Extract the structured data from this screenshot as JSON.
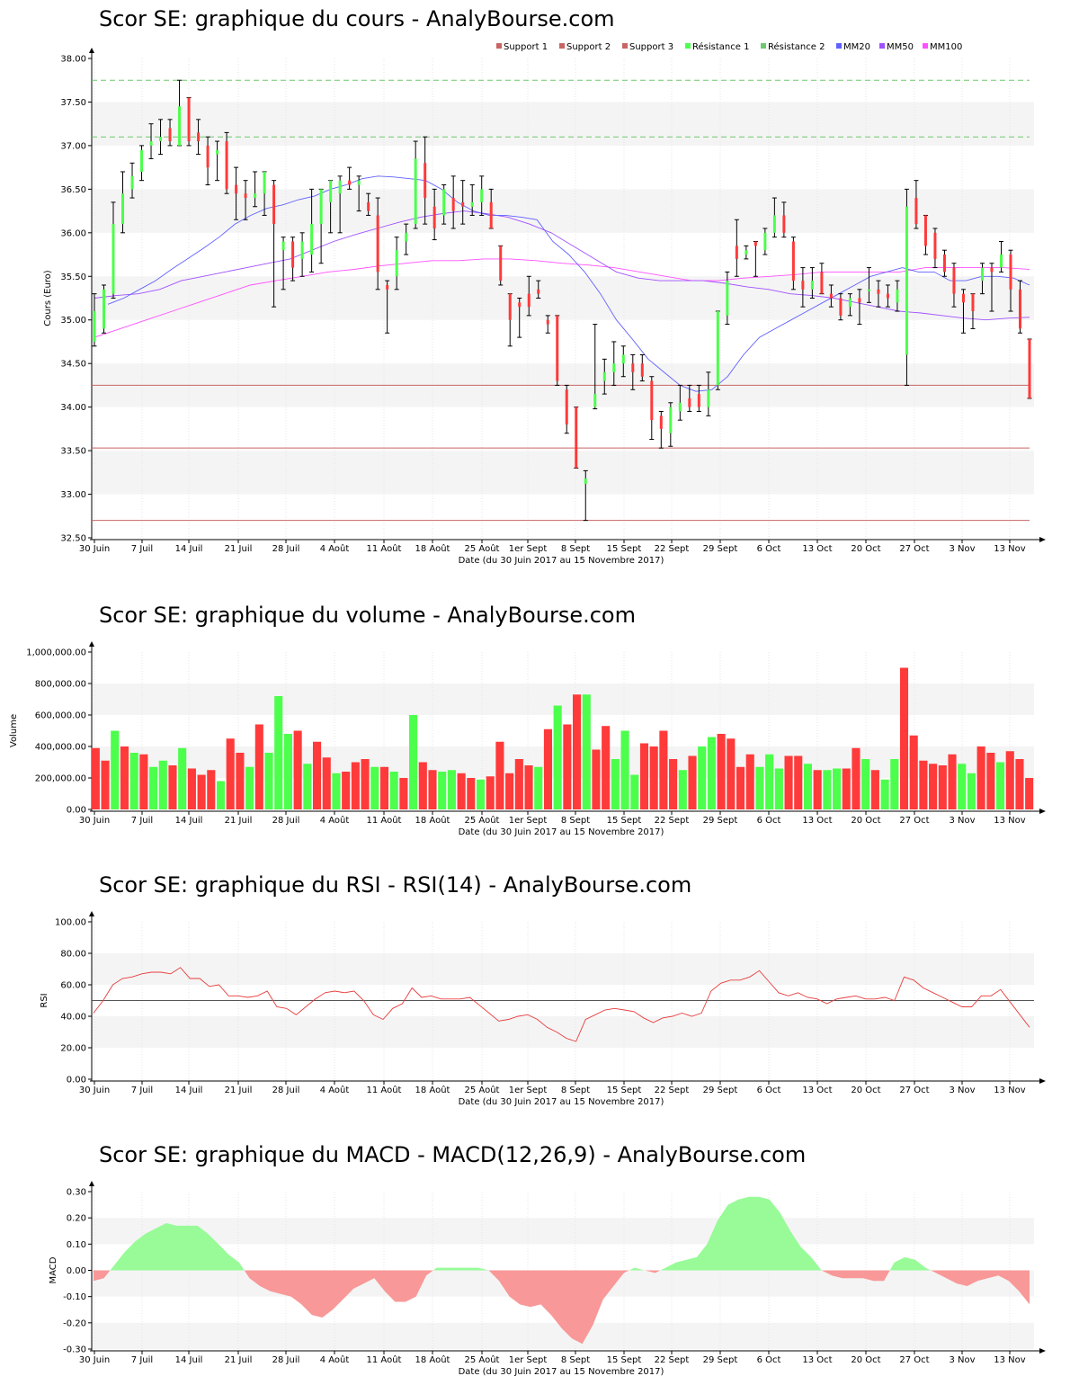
{
  "colors": {
    "up": "#4cff4c",
    "down": "#ff3a3a",
    "ma20": "#6060ff",
    "ma50": "#a050ff",
    "ma100": "#ff50ff",
    "support": "#c86464",
    "resistance": "#6ec86e",
    "macd_pos": "#98fb98",
    "macd_neg": "#f89898",
    "band": "#f4f4f4"
  },
  "icons": {
    "x_axis_arrow": "arrow-right-icon",
    "y_axis_arrow": "arrow-up-icon"
  },
  "x_axis": {
    "tick_labels": [
      "30 Juin",
      "7 Juil",
      "14 Juil",
      "21 Juil",
      "28 Juil",
      "4 Août",
      "11 Août",
      "18 Août",
      "25 Août",
      "1er Sept",
      "8 Sept",
      "15 Sept",
      "22 Sept",
      "29 Sept",
      "6 Oct",
      "13 Oct",
      "20 Oct",
      "27 Oct",
      "3 Nov",
      "13 Nov"
    ],
    "date_caption": "Date (du 30 Juin 2017 au 15 Novembre 2017)"
  },
  "chart_data": [
    {
      "id": "price",
      "type": "candlestick",
      "title": "Scor SE: graphique du cours - AnalyBourse.com",
      "ylabel": "Cours (Euro)",
      "ylim": [
        32.5,
        38.0
      ],
      "y_ticks": [
        "32.50",
        "33.00",
        "33.50",
        "34.00",
        "34.50",
        "35.00",
        "35.50",
        "36.00",
        "36.50",
        "37.00",
        "37.50",
        "38.00"
      ],
      "legend": [
        "Support 1",
        "Support 2",
        "Support 3",
        "Résistance 1",
        "Résistance 2",
        "MM20",
        "MM50",
        "MM100"
      ],
      "legend_placement": "top-right",
      "support": [
        34.25,
        33.53,
        32.7
      ],
      "resistance": [
        37.1,
        37.75
      ],
      "candles": [
        {
          "o": 34.75,
          "h": 35.3,
          "l": 34.7,
          "c": 35.1
        },
        {
          "o": 34.9,
          "h": 35.4,
          "l": 34.85,
          "c": 35.35
        },
        {
          "o": 35.3,
          "h": 36.35,
          "l": 35.25,
          "c": 36.1
        },
        {
          "o": 36.1,
          "h": 36.7,
          "l": 36.0,
          "c": 36.45
        },
        {
          "o": 36.5,
          "h": 36.8,
          "l": 36.4,
          "c": 36.65
        },
        {
          "o": 36.7,
          "h": 37.0,
          "l": 36.6,
          "c": 36.95
        },
        {
          "o": 37.0,
          "h": 37.25,
          "l": 36.85,
          "c": 37.05
        },
        {
          "o": 37.05,
          "h": 37.3,
          "l": 36.9,
          "c": 37.1
        },
        {
          "o": 37.2,
          "h": 37.3,
          "l": 37.0,
          "c": 37.05
        },
        {
          "o": 37.0,
          "h": 37.75,
          "l": 37.0,
          "c": 37.45
        },
        {
          "o": 37.55,
          "h": 37.55,
          "l": 37.0,
          "c": 37.05
        },
        {
          "o": 37.15,
          "h": 37.3,
          "l": 36.9,
          "c": 37.05
        },
        {
          "o": 37.0,
          "h": 37.1,
          "l": 36.55,
          "c": 36.75
        },
        {
          "o": 36.9,
          "h": 37.05,
          "l": 36.6,
          "c": 36.95
        },
        {
          "o": 37.05,
          "h": 37.15,
          "l": 36.45,
          "c": 36.5
        },
        {
          "o": 36.55,
          "h": 36.75,
          "l": 36.15,
          "c": 36.45
        },
        {
          "o": 36.45,
          "h": 36.6,
          "l": 36.15,
          "c": 36.4
        },
        {
          "o": 36.4,
          "h": 36.7,
          "l": 36.3,
          "c": 36.45
        },
        {
          "o": 36.45,
          "h": 36.7,
          "l": 36.2,
          "c": 36.7
        },
        {
          "o": 36.55,
          "h": 36.6,
          "l": 35.15,
          "c": 36.1
        },
        {
          "o": 35.8,
          "h": 35.95,
          "l": 35.35,
          "c": 35.9
        },
        {
          "o": 35.9,
          "h": 35.95,
          "l": 35.45,
          "c": 35.6
        },
        {
          "o": 35.7,
          "h": 36.0,
          "l": 35.5,
          "c": 35.9
        },
        {
          "o": 35.75,
          "h": 36.5,
          "l": 35.55,
          "c": 36.1
        },
        {
          "o": 36.1,
          "h": 36.5,
          "l": 35.65,
          "c": 36.5
        },
        {
          "o": 36.35,
          "h": 36.6,
          "l": 36.0,
          "c": 36.6
        },
        {
          "o": 36.45,
          "h": 36.65,
          "l": 36.0,
          "c": 36.6
        },
        {
          "o": 36.6,
          "h": 36.75,
          "l": 36.5,
          "c": 36.55
        },
        {
          "o": 36.55,
          "h": 36.65,
          "l": 36.25,
          "c": 36.6
        },
        {
          "o": 36.35,
          "h": 36.45,
          "l": 36.2,
          "c": 36.25
        },
        {
          "o": 36.2,
          "h": 36.4,
          "l": 35.35,
          "c": 35.55
        },
        {
          "o": 35.4,
          "h": 35.45,
          "l": 34.85,
          "c": 35.35
        },
        {
          "o": 35.5,
          "h": 35.95,
          "l": 35.35,
          "c": 35.8
        },
        {
          "o": 35.9,
          "h": 36.1,
          "l": 35.75,
          "c": 36.0
        },
        {
          "o": 36.1,
          "h": 37.05,
          "l": 36.05,
          "c": 36.85
        },
        {
          "o": 36.8,
          "h": 37.1,
          "l": 36.1,
          "c": 36.4
        },
        {
          "o": 36.3,
          "h": 36.5,
          "l": 35.92,
          "c": 36.05
        },
        {
          "o": 36.2,
          "h": 36.55,
          "l": 36.1,
          "c": 36.5
        },
        {
          "o": 36.4,
          "h": 36.65,
          "l": 36.05,
          "c": 36.25
        },
        {
          "o": 36.35,
          "h": 36.6,
          "l": 36.1,
          "c": 36.3
        },
        {
          "o": 36.3,
          "h": 36.55,
          "l": 36.2,
          "c": 36.35
        },
        {
          "o": 36.35,
          "h": 36.65,
          "l": 36.2,
          "c": 36.5
        },
        {
          "o": 36.35,
          "h": 36.5,
          "l": 36.05,
          "c": 36.05
        },
        {
          "o": 35.85,
          "h": 35.85,
          "l": 35.4,
          "c": 35.45
        },
        {
          "o": 35.3,
          "h": 35.3,
          "l": 34.7,
          "c": 35.0
        },
        {
          "o": 35.2,
          "h": 35.25,
          "l": 34.8,
          "c": 35.15
        },
        {
          "o": 35.3,
          "h": 35.5,
          "l": 35.05,
          "c": 35.15
        },
        {
          "o": 35.35,
          "h": 35.45,
          "l": 35.25,
          "c": 35.3
        },
        {
          "o": 35.0,
          "h": 35.05,
          "l": 34.85,
          "c": 34.95
        },
        {
          "o": 35.05,
          "h": 35.05,
          "l": 34.25,
          "c": 34.3
        },
        {
          "o": 34.2,
          "h": 34.25,
          "l": 33.7,
          "c": 33.8
        },
        {
          "o": 34.0,
          "h": 34.0,
          "l": 33.3,
          "c": 33.3
        },
        {
          "o": 33.12,
          "h": 33.27,
          "l": 32.7,
          "c": 33.18
        },
        {
          "o": 34.0,
          "h": 34.95,
          "l": 33.98,
          "c": 34.15
        },
        {
          "o": 34.3,
          "h": 34.55,
          "l": 34.15,
          "c": 34.4
        },
        {
          "o": 34.4,
          "h": 34.75,
          "l": 34.25,
          "c": 34.5
        },
        {
          "o": 34.5,
          "h": 34.7,
          "l": 34.35,
          "c": 34.6
        },
        {
          "o": 34.5,
          "h": 34.6,
          "l": 34.2,
          "c": 34.4
        },
        {
          "o": 34.5,
          "h": 34.6,
          "l": 34.3,
          "c": 34.35
        },
        {
          "o": 34.3,
          "h": 34.35,
          "l": 33.63,
          "c": 33.85
        },
        {
          "o": 33.9,
          "h": 33.95,
          "l": 33.53,
          "c": 33.75
        },
        {
          "o": 33.7,
          "h": 34.05,
          "l": 33.55,
          "c": 34.0
        },
        {
          "o": 33.95,
          "h": 34.25,
          "l": 33.85,
          "c": 34.05
        },
        {
          "o": 34.1,
          "h": 34.25,
          "l": 33.95,
          "c": 34.0
        },
        {
          "o": 34.15,
          "h": 34.25,
          "l": 33.95,
          "c": 34.0
        },
        {
          "o": 34.0,
          "h": 34.4,
          "l": 33.9,
          "c": 34.2
        },
        {
          "o": 34.25,
          "h": 35.1,
          "l": 34.2,
          "c": 35.1
        },
        {
          "o": 35.05,
          "h": 35.55,
          "l": 34.95,
          "c": 35.45
        },
        {
          "o": 35.85,
          "h": 36.15,
          "l": 35.5,
          "c": 35.7
        },
        {
          "o": 35.75,
          "h": 35.85,
          "l": 35.7,
          "c": 35.8
        },
        {
          "o": 35.9,
          "h": 35.9,
          "l": 35.5,
          "c": 35.85
        },
        {
          "o": 35.8,
          "h": 36.05,
          "l": 35.75,
          "c": 36.0
        },
        {
          "o": 36.0,
          "h": 36.4,
          "l": 35.95,
          "c": 36.2
        },
        {
          "o": 36.2,
          "h": 36.35,
          "l": 35.95,
          "c": 36.0
        },
        {
          "o": 35.9,
          "h": 35.95,
          "l": 35.35,
          "c": 35.45
        },
        {
          "o": 35.45,
          "h": 35.6,
          "l": 35.15,
          "c": 35.35
        },
        {
          "o": 35.35,
          "h": 35.6,
          "l": 35.25,
          "c": 35.45
        },
        {
          "o": 35.55,
          "h": 35.65,
          "l": 35.3,
          "c": 35.3
        },
        {
          "o": 35.3,
          "h": 35.4,
          "l": 35.15,
          "c": 35.25
        },
        {
          "o": 35.25,
          "h": 35.3,
          "l": 35.0,
          "c": 35.05
        },
        {
          "o": 35.15,
          "h": 35.3,
          "l": 35.05,
          "c": 35.25
        },
        {
          "o": 35.25,
          "h": 35.35,
          "l": 34.95,
          "c": 35.2
        },
        {
          "o": 35.35,
          "h": 35.6,
          "l": 35.2,
          "c": 35.35
        },
        {
          "o": 35.35,
          "h": 35.45,
          "l": 35.15,
          "c": 35.3
        },
        {
          "o": 35.3,
          "h": 35.4,
          "l": 35.15,
          "c": 35.25
        },
        {
          "o": 35.2,
          "h": 35.45,
          "l": 35.1,
          "c": 35.35
        },
        {
          "o": 34.6,
          "h": 36.5,
          "l": 34.25,
          "c": 36.3
        },
        {
          "o": 36.4,
          "h": 36.6,
          "l": 36.05,
          "c": 36.1
        },
        {
          "o": 36.2,
          "h": 36.2,
          "l": 35.75,
          "c": 35.85
        },
        {
          "o": 36.0,
          "h": 36.05,
          "l": 35.6,
          "c": 35.7
        },
        {
          "o": 35.75,
          "h": 35.8,
          "l": 35.5,
          "c": 35.55
        },
        {
          "o": 35.6,
          "h": 35.65,
          "l": 35.15,
          "c": 35.3
        },
        {
          "o": 35.3,
          "h": 35.35,
          "l": 34.85,
          "c": 35.2
        },
        {
          "o": 35.3,
          "h": 35.3,
          "l": 34.9,
          "c": 35.1
        },
        {
          "o": 35.45,
          "h": 35.65,
          "l": 35.3,
          "c": 35.6
        },
        {
          "o": 35.6,
          "h": 35.65,
          "l": 35.1,
          "c": 35.55
        },
        {
          "o": 35.6,
          "h": 35.9,
          "l": 35.55,
          "c": 35.75
        },
        {
          "o": 35.75,
          "h": 35.8,
          "l": 35.1,
          "c": 35.35
        },
        {
          "o": 35.35,
          "h": 35.45,
          "l": 34.85,
          "c": 34.9
        },
        {
          "o": 34.78,
          "h": 34.78,
          "l": 34.1,
          "c": 34.1
        }
      ],
      "mm20": [
        35.18,
        35.25,
        35.35,
        35.45,
        35.58,
        35.7,
        35.82,
        35.95,
        36.1,
        36.2,
        36.28,
        36.32,
        36.38,
        36.42,
        36.5,
        36.55,
        36.62,
        36.65,
        36.64,
        36.62,
        36.6,
        36.5,
        36.35,
        36.25,
        36.2,
        36.2,
        36.18,
        36.15,
        35.9,
        35.75,
        35.55,
        35.3,
        35.0,
        34.78,
        34.55,
        34.4,
        34.25,
        34.18,
        34.2,
        34.35,
        34.6,
        34.8,
        34.9,
        35.0,
        35.1,
        35.2,
        35.3,
        35.4,
        35.5,
        35.55,
        35.6,
        35.55,
        35.55,
        35.45,
        35.45,
        35.5,
        35.5,
        35.48,
        35.4
      ],
      "mm50": [
        35.25,
        35.28,
        35.3,
        35.35,
        35.45,
        35.5,
        35.55,
        35.6,
        35.65,
        35.7,
        35.8,
        35.9,
        35.98,
        36.05,
        36.12,
        36.18,
        36.22,
        36.25,
        36.22,
        36.18,
        36.1,
        36.0,
        35.85,
        35.7,
        35.55,
        35.48,
        35.45,
        35.45,
        35.45,
        35.42,
        35.38,
        35.35,
        35.3,
        35.28,
        35.25,
        35.2,
        35.15,
        35.1,
        35.08,
        35.05,
        35.02,
        35.0,
        35.02,
        35.03
      ],
      "mm100": [
        34.8,
        34.9,
        35.0,
        35.1,
        35.2,
        35.3,
        35.4,
        35.45,
        35.5,
        35.55,
        35.58,
        35.62,
        35.65,
        35.68,
        35.68,
        35.7,
        35.7,
        35.68,
        35.65,
        35.63,
        35.6,
        35.55,
        35.5,
        35.45,
        35.45,
        35.48,
        35.5,
        35.52,
        35.55,
        35.55,
        35.55,
        35.55,
        35.6,
        35.6,
        35.6,
        35.6,
        35.58
      ]
    },
    {
      "id": "volume",
      "type": "bar",
      "title": "Scor SE: graphique du volume - AnalyBourse.com",
      "ylabel": "Volume",
      "ylim": [
        0,
        1000000
      ],
      "y_ticks": [
        "0.00",
        "200,000.00",
        "400,000.00",
        "600,000.00",
        "800,000.00",
        "1,000,000.00"
      ],
      "values": [
        390000,
        310000,
        500000,
        400000,
        360000,
        350000,
        270000,
        310000,
        280000,
        390000,
        260000,
        220000,
        250000,
        180000,
        450000,
        360000,
        270000,
        540000,
        360000,
        720000,
        480000,
        500000,
        290000,
        430000,
        330000,
        230000,
        240000,
        300000,
        320000,
        270000,
        270000,
        240000,
        200000,
        600000,
        300000,
        250000,
        240000,
        250000,
        230000,
        200000,
        190000,
        210000,
        430000,
        230000,
        320000,
        280000,
        270000,
        510000,
        660000,
        540000,
        730000,
        730000,
        380000,
        530000,
        320000,
        500000,
        220000,
        420000,
        400000,
        500000,
        320000,
        250000,
        340000,
        400000,
        460000,
        480000,
        450000,
        270000,
        350000,
        270000,
        350000,
        260000,
        340000,
        340000,
        290000,
        250000,
        250000,
        260000,
        260000,
        390000,
        320000,
        250000,
        190000,
        320000,
        900000,
        470000,
        310000,
        290000,
        280000,
        350000,
        290000,
        230000,
        400000,
        360000,
        300000,
        370000,
        320000,
        200000
      ],
      "directions": "ddududuududddudduduuududdudddudududduuddudddddududdudduuudddduduudddduuudduduudduduudddddduuddudd"
    },
    {
      "id": "rsi",
      "type": "line",
      "title": "Scor SE: graphique du RSI - RSI(14) - AnalyBourse.com",
      "ylabel": "RSI",
      "ylim": [
        0,
        100
      ],
      "y_ticks": [
        "0.00",
        "20.00",
        "40.00",
        "60.00",
        "80.00",
        "100.00"
      ],
      "midline": 50,
      "values": [
        42,
        50,
        60,
        64,
        65,
        67,
        68,
        68,
        67,
        71,
        64,
        64,
        59,
        60,
        53,
        53,
        52,
        53,
        56,
        46,
        45,
        41,
        46,
        51,
        55,
        56,
        55,
        56,
        50,
        41,
        38,
        45,
        48,
        58,
        52,
        53,
        51,
        51,
        51,
        52,
        47,
        42,
        37,
        38,
        40,
        41,
        38,
        33,
        30,
        26,
        24,
        38,
        41,
        44,
        45,
        44,
        43,
        39,
        36,
        39,
        40,
        42,
        40,
        42,
        56,
        61,
        63,
        63,
        65,
        69,
        62,
        55,
        53,
        55,
        52,
        51,
        48,
        51,
        52,
        53,
        51,
        51,
        52,
        50,
        65,
        63,
        58,
        55,
        52,
        49,
        46,
        46,
        53,
        53,
        57,
        49,
        41,
        33
      ]
    },
    {
      "id": "macd",
      "type": "area",
      "title": "Scor SE: graphique du MACD - MACD(12,26,9) - AnalyBourse.com",
      "ylabel": "MACD",
      "ylim": [
        -0.3,
        0.3
      ],
      "y_ticks": [
        "-0.30",
        "-0.20",
        "-0.10",
        "0.00",
        "0.10",
        "0.20",
        "0.30"
      ],
      "values": [
        -0.04,
        -0.03,
        0.02,
        0.07,
        0.11,
        0.14,
        0.16,
        0.18,
        0.17,
        0.17,
        0.17,
        0.14,
        0.1,
        0.06,
        0.03,
        -0.03,
        -0.06,
        -0.08,
        -0.09,
        -0.1,
        -0.13,
        -0.17,
        -0.18,
        -0.15,
        -0.11,
        -0.07,
        -0.05,
        -0.03,
        -0.08,
        -0.12,
        -0.12,
        -0.1,
        -0.02,
        0.01,
        0.01,
        0.01,
        0.01,
        0.01,
        0.0,
        -0.04,
        -0.1,
        -0.13,
        -0.14,
        -0.13,
        -0.17,
        -0.22,
        -0.26,
        -0.28,
        -0.21,
        -0.11,
        -0.06,
        -0.01,
        0.01,
        0.0,
        -0.01,
        0.01,
        0.03,
        0.04,
        0.05,
        0.1,
        0.19,
        0.25,
        0.27,
        0.28,
        0.28,
        0.27,
        0.22,
        0.15,
        0.09,
        0.05,
        0.0,
        -0.02,
        -0.03,
        -0.03,
        -0.03,
        -0.04,
        -0.04,
        0.03,
        0.05,
        0.04,
        0.01,
        -0.01,
        -0.03,
        -0.05,
        -0.06,
        -0.04,
        -0.03,
        -0.02,
        -0.04,
        -0.08,
        -0.13
      ]
    }
  ]
}
